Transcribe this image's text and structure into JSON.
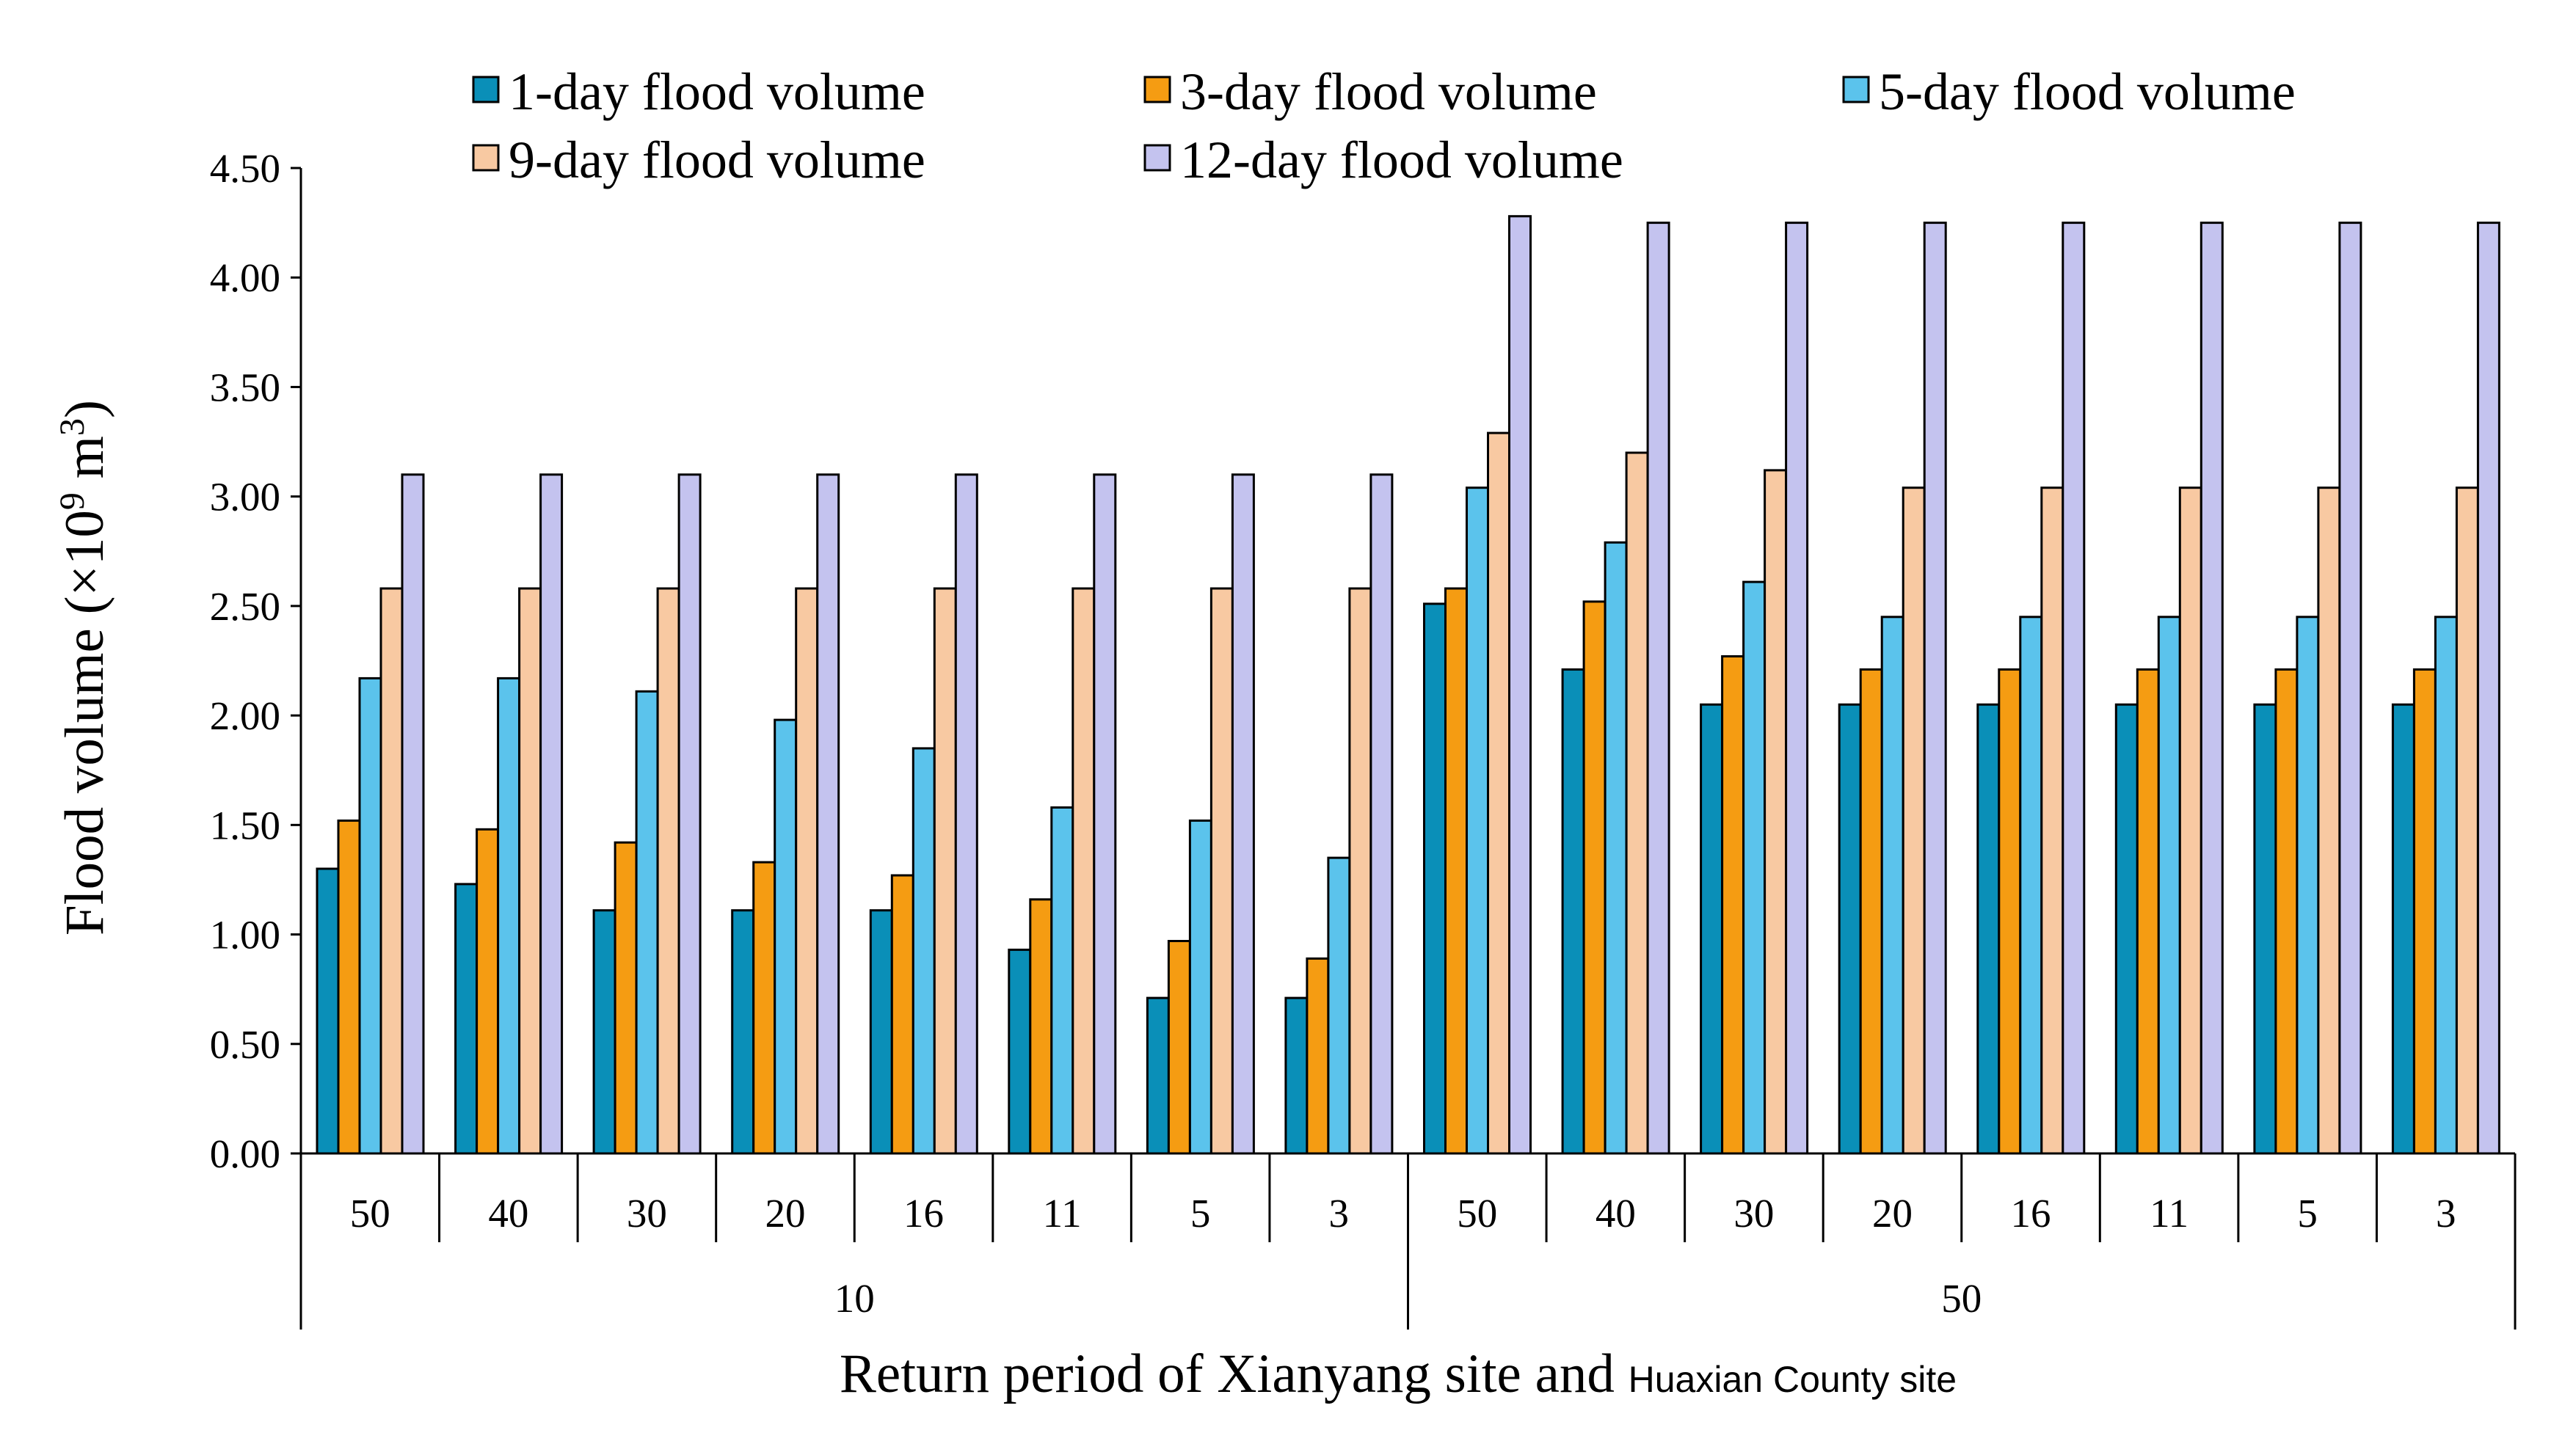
{
  "chart_data": {
    "type": "bar",
    "ylabel": {
      "prefix": "Flood volume (×10",
      "sup1": "9",
      "mid": " m",
      "sup2": "3",
      "suffix": ")"
    },
    "xlabel": {
      "main": "Return period of Xianyang site and ",
      "small": "Huaxian County site"
    },
    "ylim": [
      0,
      4.5
    ],
    "yticks": [
      "0.00",
      "0.50",
      "1.00",
      "1.50",
      "2.00",
      "2.50",
      "3.00",
      "3.50",
      "4.00",
      "4.50"
    ],
    "categories": [
      "50",
      "40",
      "30",
      "20",
      "16",
      "11",
      "5",
      "3",
      "50",
      "40",
      "30",
      "20",
      "16",
      "11",
      "5",
      "3"
    ],
    "groups": [
      {
        "label": "10",
        "count": 8
      },
      {
        "label": "50",
        "count": 8
      }
    ],
    "legend_position": "top",
    "series": [
      {
        "name": "1-day flood volume",
        "color": "#0a8fb8",
        "values": [
          1.3,
          1.23,
          1.11,
          1.11,
          1.11,
          0.93,
          0.71,
          0.71,
          2.51,
          2.21,
          2.05,
          2.05,
          2.05,
          2.05,
          2.05,
          2.05
        ]
      },
      {
        "name": "3-day flood volume",
        "color": "#f59c12",
        "values": [
          1.52,
          1.48,
          1.42,
          1.33,
          1.27,
          1.16,
          0.97,
          0.89,
          2.58,
          2.52,
          2.27,
          2.21,
          2.21,
          2.21,
          2.21,
          2.21
        ]
      },
      {
        "name": "5-day flood volume",
        "color": "#5bc3ec",
        "values": [
          2.17,
          2.17,
          2.11,
          1.98,
          1.85,
          1.58,
          1.52,
          1.35,
          3.04,
          2.79,
          2.61,
          2.45,
          2.45,
          2.45,
          2.45,
          2.45
        ]
      },
      {
        "name": "9-day flood volume",
        "color": "#f8c9a2",
        "values": [
          2.58,
          2.58,
          2.58,
          2.58,
          2.58,
          2.58,
          2.58,
          2.58,
          3.29,
          3.2,
          3.12,
          3.04,
          3.04,
          3.04,
          3.04,
          3.04
        ]
      },
      {
        "name": "12-day flood volume",
        "color": "#c4c3ef",
        "values": [
          3.1,
          3.1,
          3.1,
          3.1,
          3.1,
          3.1,
          3.1,
          3.1,
          4.28,
          4.25,
          4.25,
          4.25,
          4.25,
          4.25,
          4.25,
          4.25
        ]
      }
    ]
  }
}
